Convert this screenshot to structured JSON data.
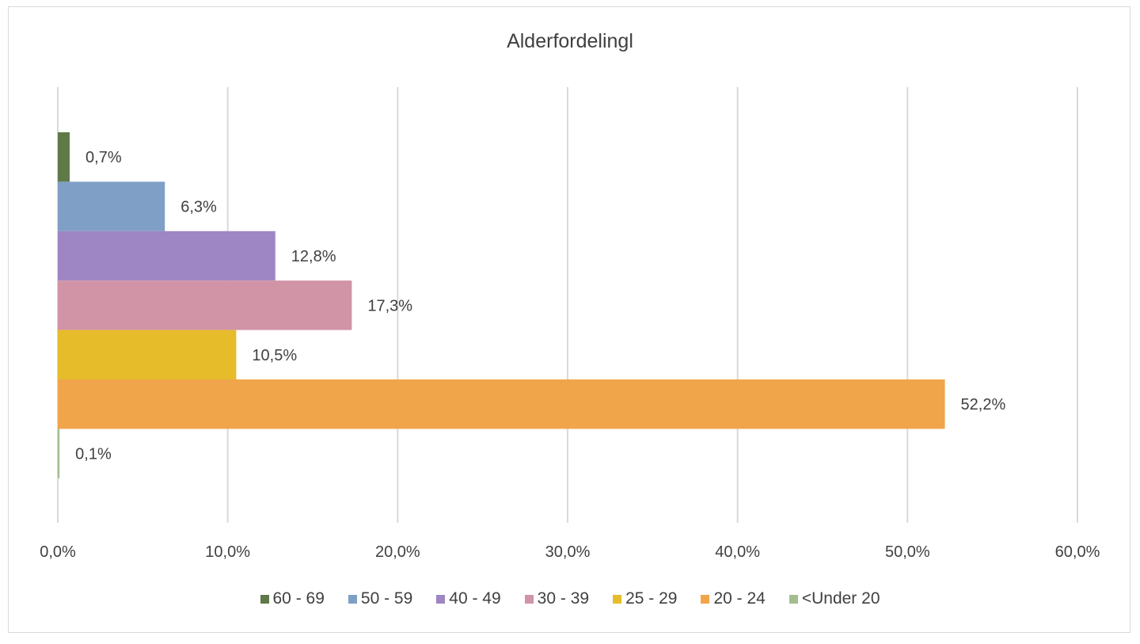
{
  "chart_data": {
    "type": "bar",
    "orientation": "horizontal",
    "title": "Alderfordelingl",
    "xlabel": "",
    "ylabel": "",
    "xlim": [
      0,
      60
    ],
    "x_ticks": [
      "0,0%",
      "10,0%",
      "20,0%",
      "30,0%",
      "40,0%",
      "50,0%",
      "60,0%"
    ],
    "x_tick_values": [
      0,
      10,
      20,
      30,
      40,
      50,
      60
    ],
    "grid": true,
    "legend_position": "bottom",
    "series": [
      {
        "name": "60 - 69",
        "value": 0.7,
        "label": "0,7%",
        "color": "#5f7a48"
      },
      {
        "name": "50 - 59",
        "value": 6.3,
        "label": "6,3%",
        "color": "#7f9fc6"
      },
      {
        "name": "40 - 49",
        "value": 12.8,
        "label": "12,8%",
        "color": "#9d86c3"
      },
      {
        "name": "30 - 39",
        "value": 17.3,
        "label": "17,3%",
        "color": "#d193a6"
      },
      {
        "name": "25 - 29",
        "value": 10.5,
        "label": "10,5%",
        "color": "#e6bc2b"
      },
      {
        "name": "20 - 24",
        "value": 52.2,
        "label": "52,2%",
        "color": "#f0a54a"
      },
      {
        "name": "<Under 20",
        "value": 0.1,
        "label": "0,1%",
        "color": "#a3bd8f"
      }
    ]
  }
}
